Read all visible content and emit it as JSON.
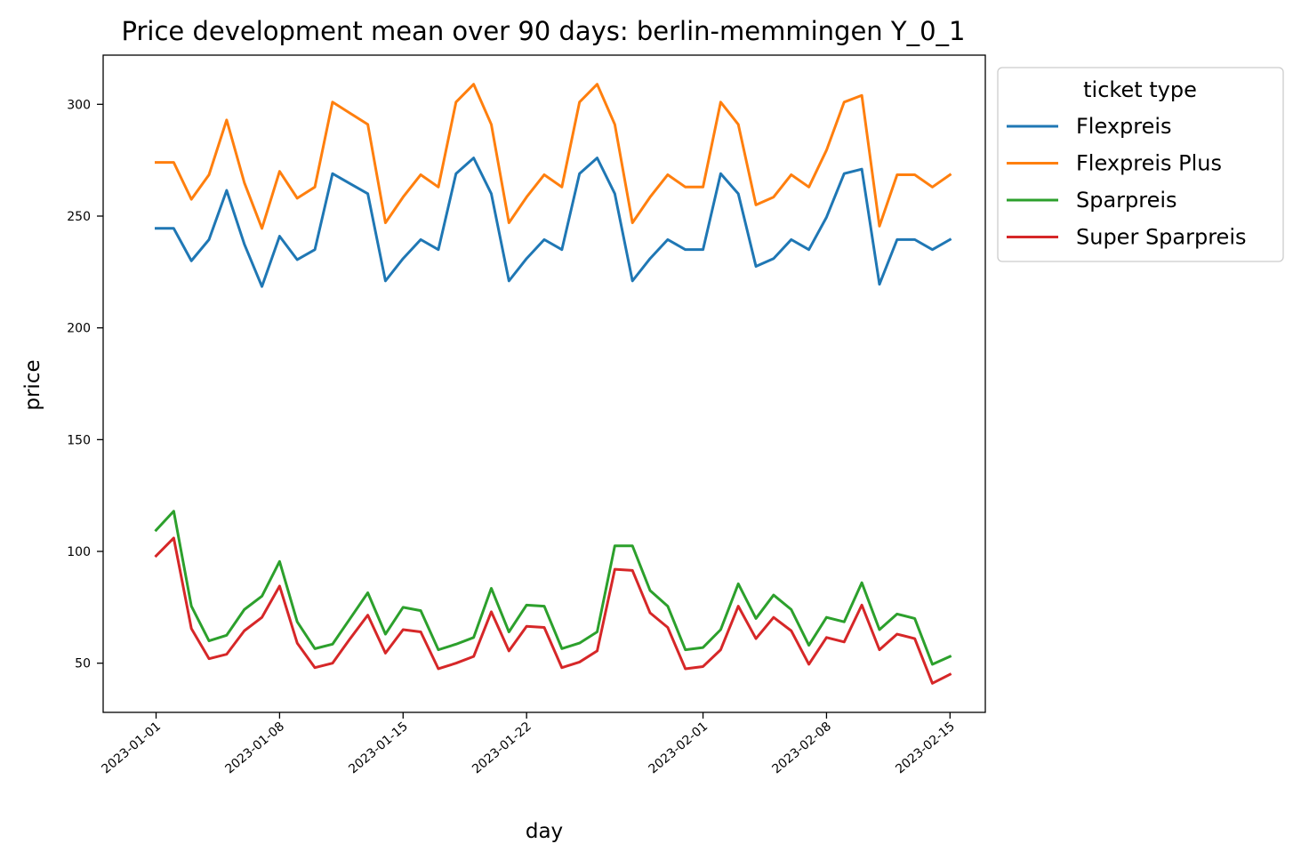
{
  "chart_data": {
    "type": "line",
    "title": "Price development mean over 90 days: berlin-memmingen Y_0_1",
    "xlabel": "day",
    "ylabel": "price",
    "ylim": [
      28,
      322
    ],
    "xlim": [
      "2022-12-29",
      "2023-02-17"
    ],
    "grid": false,
    "legend_title": "ticket type",
    "legend_position": "outside-top-right",
    "x_ticks": [
      "2023-01-01",
      "2023-01-08",
      "2023-01-15",
      "2023-01-22",
      "2023-02-01",
      "2023-02-08",
      "2023-02-15"
    ],
    "y_ticks": [
      50,
      100,
      150,
      200,
      250,
      300
    ],
    "x": [
      "2023-01-01",
      "2023-01-02",
      "2023-01-03",
      "2023-01-04",
      "2023-01-05",
      "2023-01-06",
      "2023-01-07",
      "2023-01-08",
      "2023-01-09",
      "2023-01-10",
      "2023-01-11",
      "2023-01-12",
      "2023-01-13",
      "2023-01-14",
      "2023-01-15",
      "2023-01-16",
      "2023-01-17",
      "2023-01-18",
      "2023-01-19",
      "2023-01-20",
      "2023-01-21",
      "2023-01-22",
      "2023-01-23",
      "2023-01-24",
      "2023-01-25",
      "2023-01-26",
      "2023-01-27",
      "2023-01-28",
      "2023-01-29",
      "2023-01-30",
      "2023-01-31",
      "2023-02-01",
      "2023-02-02",
      "2023-02-03",
      "2023-02-04",
      "2023-02-05",
      "2023-02-06",
      "2023-02-07",
      "2023-02-08",
      "2023-02-09",
      "2023-02-10",
      "2023-02-11",
      "2023-02-12",
      "2023-02-13",
      "2023-02-14",
      "2023-02-15"
    ],
    "series": [
      {
        "name": "Flexpreis",
        "color": "#1f77b4",
        "values": [
          244.5,
          244.5,
          230,
          239.5,
          261.5,
          237.5,
          218.5,
          241,
          230.5,
          235,
          269,
          264.5,
          260,
          221,
          231,
          239.5,
          235,
          269,
          276,
          260,
          221,
          231,
          239.5,
          235,
          269,
          276,
          260,
          221,
          231,
          239.5,
          235,
          235,
          269,
          260,
          227.5,
          231,
          239.5,
          235,
          249.5,
          269,
          271,
          219.5,
          239.5,
          239.5,
          235,
          239.5
        ]
      },
      {
        "name": "Flexpreis Plus",
        "color": "#ff7f0e",
        "values": [
          274,
          274,
          257.5,
          268.5,
          293,
          265,
          244.5,
          270,
          258,
          263,
          301,
          296,
          291,
          247,
          258.5,
          268.5,
          263,
          301,
          309,
          291,
          247,
          258.5,
          268.5,
          263,
          301,
          309,
          291,
          247,
          258.5,
          268.5,
          263,
          263,
          301,
          291,
          255,
          258.5,
          268.5,
          263,
          279.5,
          301,
          304,
          245.5,
          268.5,
          268.5,
          263,
          268.5
        ]
      },
      {
        "name": "Sparpreis",
        "color": "#2ca02c",
        "values": [
          109.5,
          118,
          75.5,
          60,
          62.5,
          74,
          80,
          95.5,
          68.5,
          56.5,
          58.5,
          70,
          81.5,
          63,
          75,
          73.5,
          56,
          58.5,
          61.5,
          83.5,
          64,
          76,
          75.5,
          56.5,
          59,
          64,
          102.5,
          102.5,
          82.5,
          75.5,
          56,
          57,
          65,
          85.5,
          70,
          80.5,
          74,
          58,
          70.5,
          68.5,
          86,
          65,
          72,
          70,
          49.5,
          53
        ]
      },
      {
        "name": "Super Sparpreis",
        "color": "#d62728",
        "values": [
          98,
          106,
          65.5,
          52,
          54,
          64.5,
          70.5,
          84.5,
          59,
          48,
          50,
          61,
          71.5,
          54.5,
          65,
          64,
          47.5,
          50,
          53,
          73,
          55.5,
          66.5,
          66,
          48,
          50.5,
          55.5,
          92,
          91.5,
          72.5,
          66,
          47.5,
          48.5,
          56,
          75.5,
          61,
          70.5,
          64.5,
          49.5,
          61.5,
          59.5,
          76,
          56,
          63,
          61,
          41,
          45
        ]
      }
    ]
  }
}
